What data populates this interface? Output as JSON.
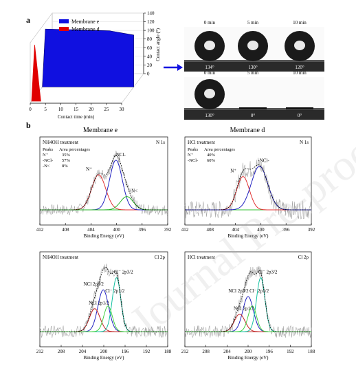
{
  "panel_labels": {
    "a": "a",
    "b": "b"
  },
  "column_titles": {
    "left": "Membrane e",
    "right": "Membrane d"
  },
  "watermark": "Journal Pre-proof",
  "chart_data": [
    {
      "type": "area",
      "panel": "a",
      "ylabel": "Contact angle (°)",
      "xlabel": "Contact time (min)",
      "x_ticks": [
        0,
        5,
        10,
        15,
        20,
        25,
        30
      ],
      "y_ticks": [
        0,
        20,
        40,
        60,
        80,
        100,
        120,
        140
      ],
      "ylim": [
        0,
        140
      ],
      "xlim": [
        0,
        30
      ],
      "legend": "top-left",
      "series": [
        {
          "name": "Membrane e",
          "color": "#1010e0",
          "x": [
            0,
            1,
            22,
            30
          ],
          "y": [
            0,
            134,
            130,
            120
          ]
        },
        {
          "name": "Membrane d",
          "color": "#e00000",
          "x": [
            0,
            1,
            3
          ],
          "y": [
            0,
            130,
            0
          ]
        }
      ]
    },
    {
      "type": "image",
      "panel": "a-droplets",
      "time_labels": [
        "0 min",
        "5 min",
        "10 min"
      ],
      "rows": [
        {
          "angles": [
            "134°",
            "130°",
            "120°"
          ],
          "droplets": [
            1,
            1,
            1
          ]
        },
        {
          "angles": [
            "130°",
            "0°",
            "0°"
          ],
          "droplets": [
            1,
            0,
            0
          ]
        }
      ]
    },
    {
      "type": "line",
      "panel": "b1",
      "treatment": "NH4OH treatment",
      "core": "N 1s",
      "xlabel": "Binding Energy (eV)",
      "x_ticks": [
        412,
        408,
        404,
        400,
        396,
        392
      ],
      "xlim": [
        412,
        392
      ],
      "table": {
        "headers": [
          "Peaks",
          "Area percentages"
        ],
        "rows": [
          [
            "N⁺",
            "35%"
          ],
          [
            "-NCl-",
            "57%"
          ],
          [
            "-N<",
            "8%"
          ]
        ]
      },
      "peaks": [
        {
          "label": "N⁺",
          "center": 402.8,
          "height": 0.58,
          "width": 1.1,
          "color": "#e03030"
        },
        {
          "label": "-NCl-",
          "center": 400.1,
          "height": 0.82,
          "width": 1.0,
          "color": "#2020c0"
        },
        {
          "label": "-N<",
          "center": 398.4,
          "height": 0.22,
          "width": 1.0,
          "color": "#20b020"
        }
      ]
    },
    {
      "type": "line",
      "panel": "b2",
      "treatment": "HCl treatment",
      "core": "N 1s",
      "xlabel": "Binding Energy (eV)",
      "x_ticks": [
        412,
        408,
        404,
        400,
        396,
        392
      ],
      "xlim": [
        412,
        392
      ],
      "table": {
        "headers": [
          "Peaks",
          "Area percentages"
        ],
        "rows": [
          [
            "N⁺",
            "40%"
          ],
          [
            "-NCl-",
            "60%"
          ]
        ]
      },
      "peaks": [
        {
          "label": "N⁺",
          "center": 402.8,
          "height": 0.55,
          "width": 1.0,
          "color": "#e03030"
        },
        {
          "label": "-NCl-",
          "center": 400.2,
          "height": 0.72,
          "width": 1.3,
          "color": "#2020c0"
        }
      ]
    },
    {
      "type": "line",
      "panel": "b3",
      "treatment": "NH4OH treatment",
      "core": "Cl 2p",
      "xlabel": "Binding Energy (eV)",
      "x_ticks": [
        212,
        208,
        204,
        200,
        196,
        192,
        188
      ],
      "xlim": [
        212,
        188
      ],
      "peaks": [
        {
          "label": "NCl 2p3/2",
          "center": 200.1,
          "height": 0.62,
          "width": 1.0,
          "color": "#2020c0"
        },
        {
          "label": "NCl 2p1/2",
          "center": 201.7,
          "height": 0.34,
          "width": 1.0,
          "color": "#c02020"
        },
        {
          "label": "Cl⁻ 2p3/2",
          "center": 197.6,
          "height": 0.8,
          "width": 0.8,
          "color": "#10c0a0"
        },
        {
          "label": "Cl⁻ 2p1/2",
          "center": 199.2,
          "height": 0.38,
          "width": 0.8,
          "color": "#40d040"
        }
      ]
    },
    {
      "type": "line",
      "panel": "b4",
      "treatment": "HCl treatment",
      "core": "Cl 2p",
      "xlabel": "Binding Energy (eV)",
      "x_ticks": [
        212,
        208,
        204,
        200,
        196,
        192,
        188
      ],
      "xlim": [
        212,
        188
      ],
      "peaks": [
        {
          "label": "NCl 2p3/2",
          "center": 200.0,
          "height": 0.52,
          "width": 1.0,
          "color": "#2020c0"
        },
        {
          "label": "NCl 2p1/2",
          "center": 201.6,
          "height": 0.26,
          "width": 1.0,
          "color": "#c02020"
        },
        {
          "label": "Cl⁻ 2p3/2",
          "center": 197.6,
          "height": 0.8,
          "width": 0.8,
          "color": "#10c0a0"
        },
        {
          "label": "Cl⁻ 2p1/2",
          "center": 199.2,
          "height": 0.38,
          "width": 0.8,
          "color": "#40d040"
        }
      ]
    }
  ]
}
